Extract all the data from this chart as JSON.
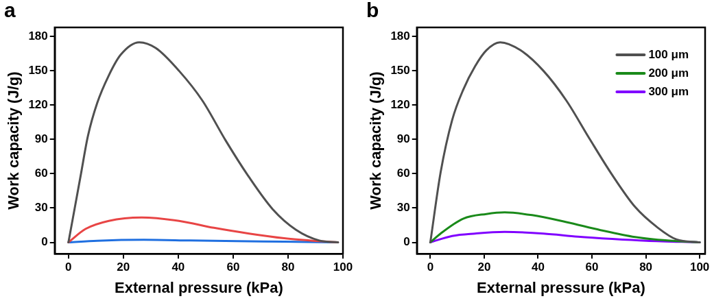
{
  "chart_data": [
    {
      "type": "line",
      "annotations": [
        "a"
      ],
      "xlabel": "External pressure (kPa)",
      "ylabel": "Work capacity (J/g)",
      "xlim": [
        -5,
        100
      ],
      "ylim": [
        -10,
        188
      ],
      "xticks": [
        0,
        20,
        40,
        60,
        80,
        100
      ],
      "yticks": [
        0,
        30,
        60,
        90,
        120,
        150,
        180
      ],
      "grid": false,
      "legend": false,
      "marker": "none",
      "line_style": "solid",
      "series": [
        {
          "color": "#505050",
          "x": [
            0,
            4.5,
            7.1,
            10.5,
            14.7,
            19,
            25.8,
            31.8,
            40.3,
            48.8,
            57.3,
            65.8,
            74.4,
            82.9,
            91.4,
            98.2
          ],
          "values": [
            0,
            59,
            93,
            122,
            146,
            164,
            175,
            170,
            150,
            124,
            89,
            57,
            29,
            11,
            1.6,
            0
          ]
        },
        {
          "color": "#e84545",
          "x": [
            0,
            6.2,
            14.7,
            26.7,
            40.3,
            53,
            65.8,
            78.6,
            91.4,
            98.2
          ],
          "values": [
            0,
            11.7,
            18.8,
            21.8,
            18.8,
            12.7,
            7.7,
            3.6,
            1,
            0
          ]
        },
        {
          "color": "#1f6fe0",
          "x": [
            0,
            10.5,
            27.5,
            44.5,
            61.5,
            78.6,
            98.2
          ],
          "values": [
            0,
            1.4,
            2.2,
            1.6,
            1,
            0.6,
            0
          ]
        }
      ]
    },
    {
      "type": "line",
      "annotations": [
        "b"
      ],
      "xlabel": "External pressure (kPa)",
      "ylabel": "Work capacity (J/g)",
      "xlim": [
        -5,
        102
      ],
      "ylim": [
        -10,
        188
      ],
      "xticks": [
        0,
        20,
        40,
        60,
        80,
        100
      ],
      "yticks": [
        0,
        30,
        60,
        90,
        120,
        150,
        180
      ],
      "grid": false,
      "legend": "top right",
      "marker": "none",
      "line_style": "solid",
      "series": [
        {
          "name": "100 μm",
          "color": "#505050",
          "x": [
            0,
            3.8,
            8.1,
            12.3,
            16.6,
            20.8,
            25.9,
            33.5,
            42,
            50.5,
            59,
            67.5,
            76,
            84.5,
            91.3,
            100
          ],
          "values": [
            0,
            61,
            107,
            134,
            154,
            168,
            175,
            168,
            150,
            124,
            91,
            59,
            31,
            12.7,
            2.6,
            0
          ]
        },
        {
          "name": "200 μm",
          "color": "#1a8a1a",
          "x": [
            0,
            3.8,
            12.3,
            20.8,
            27.6,
            37.8,
            50.5,
            63.2,
            76,
            84.5,
            100
          ],
          "values": [
            0,
            7.7,
            20.8,
            24.8,
            26.2,
            23.8,
            17.7,
            10.7,
            4.6,
            2.2,
            0
          ]
        },
        {
          "name": "300 μm",
          "color": "#8000ff",
          "x": [
            0,
            8.1,
            16.6,
            27.6,
            42,
            54.8,
            67.5,
            80.2,
            100
          ],
          "values": [
            0,
            5.6,
            7.7,
            9.1,
            7.7,
            5,
            3,
            1.4,
            0
          ]
        }
      ]
    }
  ]
}
